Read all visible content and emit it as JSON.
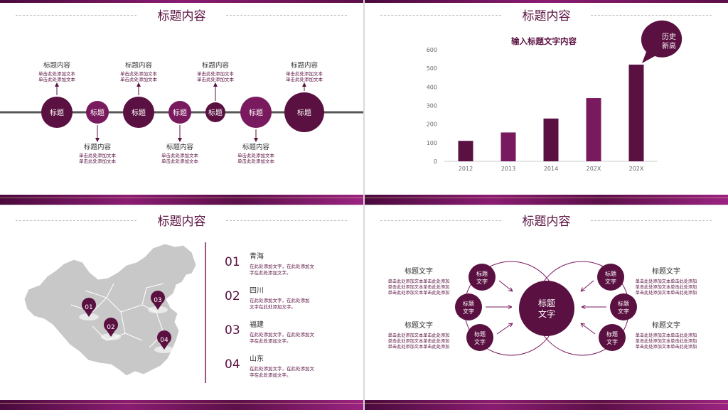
{
  "colors": {
    "dark": "#5a1040",
    "mid": "#7a1a5e",
    "band": "#6b1550",
    "gray": "#c8c8c8"
  },
  "slide1": {
    "title": "标题内容",
    "nodes": [
      {
        "label": "标题",
        "heading": "标题内容",
        "lines": [
          "单击此处添加文本",
          "单击此处添加文本"
        ],
        "pos": "up"
      },
      {
        "label": "标题",
        "heading": "标题内容",
        "lines": [
          "单击此处添加文本",
          "单击此处添加文本"
        ],
        "pos": "down"
      },
      {
        "label": "标题",
        "heading": "标题内容",
        "lines": [
          "单击此处添加文本",
          "单击此处添加文本"
        ],
        "pos": "up"
      },
      {
        "label": "标题",
        "heading": "标题内容",
        "lines": [
          "单击此处添加文本",
          "单击此处添加文本"
        ],
        "pos": "down"
      },
      {
        "label": "标题",
        "heading": "标题内容",
        "lines": [
          "单击此处添加文本",
          "单击此处添加文本"
        ],
        "pos": "up"
      },
      {
        "label": "标题",
        "heading": "标题内容",
        "lines": [
          "单击此处添加文本",
          "单击此处添加文本"
        ],
        "pos": "down"
      },
      {
        "label": "标题",
        "heading": "标题内容",
        "lines": [
          "单击此处添加文本",
          "单击此处添加文本"
        ],
        "pos": "up"
      }
    ]
  },
  "slide2": {
    "title": "标题内容",
    "chart_data": {
      "type": "bar",
      "title": "输入标题文字内容",
      "categories": [
        "2012",
        "2013",
        "2014",
        "202X",
        "202X"
      ],
      "values": [
        110,
        155,
        230,
        340,
        520
      ],
      "ylim": [
        0,
        600
      ],
      "yticks": [
        "0",
        "100",
        "200",
        "300",
        "400",
        "500",
        "600"
      ],
      "xlabel": "",
      "ylabel": "",
      "grid": false
    },
    "callout": [
      "历史",
      "新高"
    ]
  },
  "slide3": {
    "title": "标题内容",
    "pins": [
      "01",
      "02",
      "03",
      "04"
    ],
    "items": [
      {
        "num": "01",
        "name": "青海",
        "lines": [
          "在此处添加文字，在此处添加文",
          "字在此处添加文字。"
        ]
      },
      {
        "num": "02",
        "name": "四川",
        "lines": [
          "在此处添加文字，在此处添加",
          "文字在此处添加文字。"
        ]
      },
      {
        "num": "03",
        "name": "福建",
        "lines": [
          "在此处添加文字，在此处添加文",
          "字在此处添加文字。"
        ]
      },
      {
        "num": "04",
        "name": "山东",
        "lines": [
          "在此处添加文字，在此处添加文",
          "字在此处添加文字。"
        ]
      }
    ]
  },
  "slide4": {
    "title": "标题内容",
    "center": [
      "标题",
      "文字"
    ],
    "nodes": [
      [
        "标题",
        "文字"
      ],
      [
        "标题",
        "文字"
      ],
      [
        "标题",
        "文字"
      ],
      [
        "标题",
        "文字"
      ],
      [
        "标题",
        "文字"
      ],
      [
        "标题",
        "文字"
      ]
    ],
    "texts": [
      {
        "heading": "标题文字",
        "lines": [
          "单击此处添加文本单击此处添加",
          "单击此处添加文本单击此处添加",
          "单击此处添加文本单击此处添加"
        ]
      },
      {
        "heading": "标题文字",
        "lines": [
          "单击此处添加文本单击此处添加",
          "单击此处添加文本单击此处添加",
          "单击此处添加文本单击此处添加"
        ]
      },
      {
        "heading": "标题文字",
        "lines": [
          "单击此处添加文本单击此处添加",
          "单击此处添加文本单击此处添加",
          "单击此处添加文本单击此处添加"
        ]
      },
      {
        "heading": "标题文字",
        "lines": [
          "单击此处添加文本单击此处添加",
          "单击此处添加文本单击此处添加",
          "单击此处添加文本单击此处添加"
        ]
      }
    ]
  }
}
